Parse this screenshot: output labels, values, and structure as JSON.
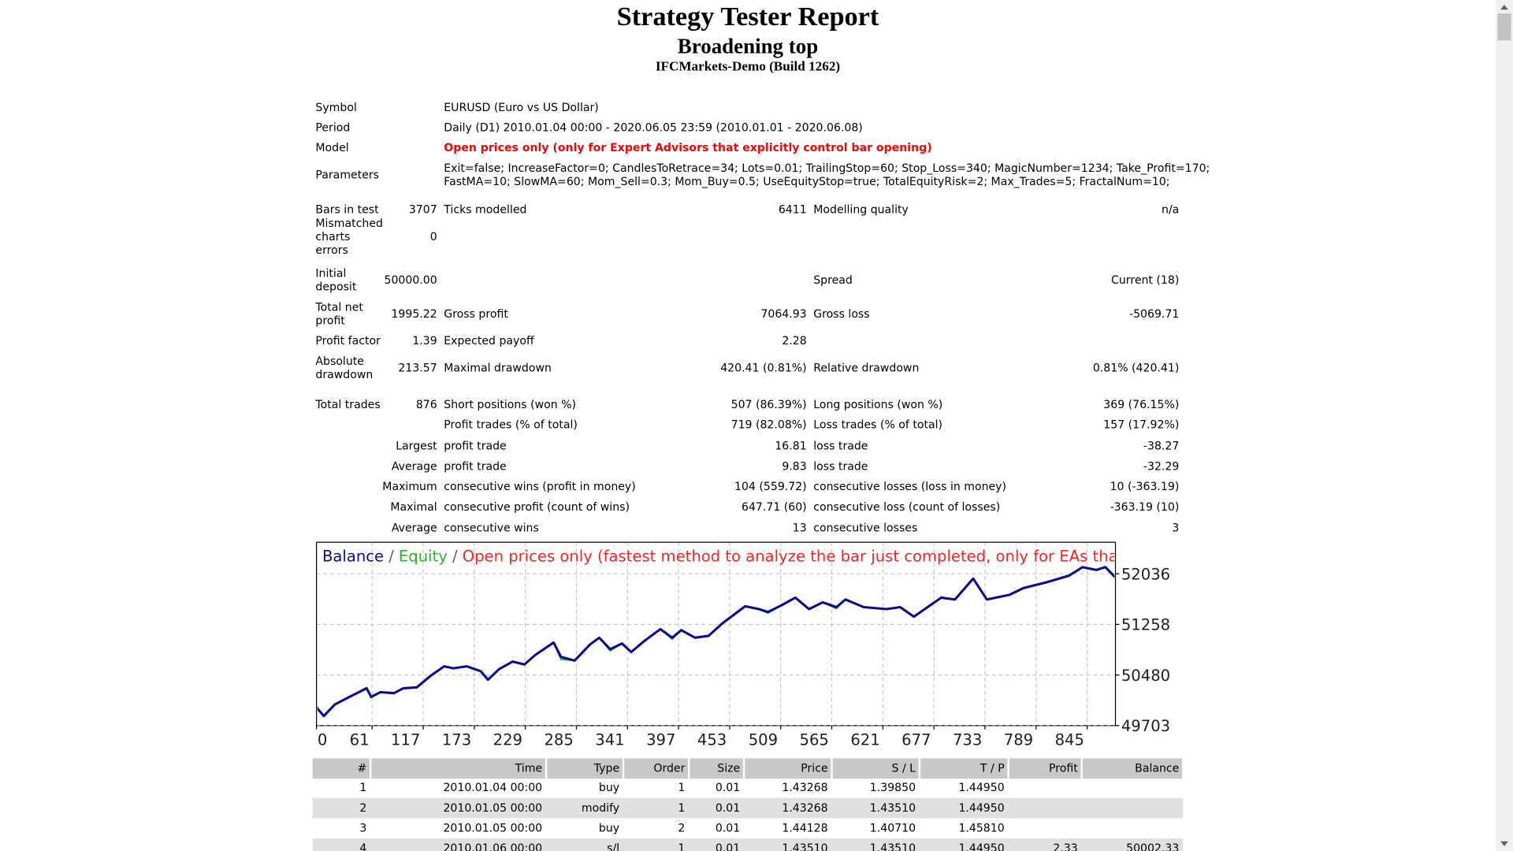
{
  "header": {
    "title": "Strategy Tester Report",
    "strategy": "Broadening top",
    "server": "IFCMarkets-Demo (Build 1262)"
  },
  "info": [
    {
      "label": "Symbol",
      "value": [
        "EURUSD (Euro vs US Dollar)"
      ]
    },
    {
      "label": "Period",
      "value": [
        "Daily (D1) 2010.01.04 00:00 - 2020.06.05 23:59 (2010.01.01 - 2020.06.08)"
      ]
    },
    {
      "label": "Model",
      "value": [
        "Open prices only (only for Expert Advisors that explicitly control bar opening)"
      ],
      "color": "#ff0000"
    },
    {
      "label": "Parameters",
      "value": [
        "Exit=false; IncreaseFactor=0; CandlesToRetrace=34; Lots=0.01; TrailingStop=60; Stop_Loss=340; MagicNumber=1234; Take_Profit=170;",
        "FastMA=10; SlowMA=60; Mom_Sell=0.3; Mom_Buy=0.5; UseEquityStop=true; TotalEquityRisk=2; Max_Trades=5; FractalNum=10;"
      ]
    }
  ],
  "stats": [
    [
      "Bars in test",
      "3707",
      "Ticks modelled",
      "6411",
      "Modelling quality",
      "n/a"
    ],
    [
      "Mismatched charts errors",
      "0",
      null,
      null,
      null,
      null
    ],
    [
      "Initial deposit",
      "50000.00",
      null,
      null,
      "Spread",
      "Current (18)"
    ],
    [
      "Total net profit",
      "1995.22",
      "Gross profit",
      "7064.93",
      "Gross loss",
      "-5069.71"
    ],
    [
      "Profit factor",
      "1.39",
      "Expected payoff",
      "2.28",
      null,
      null
    ],
    [
      "Absolute drawdown",
      "213.57",
      "Maximal drawdown",
      "420.41 (0.81%)",
      "Relative drawdown",
      "0.81% (420.41)"
    ],
    [
      "Total trades",
      "876",
      "Short positions (won %)",
      "507 (86.39%)",
      "Long positions (won %)",
      "369 (76.15%)"
    ],
    [
      null,
      null,
      "Profit trades (% of total)",
      "719 (82.08%)",
      "Loss trades (% of total)",
      "157 (17.92%)"
    ],
    [
      null,
      "Largest",
      "profit trade",
      "16.81",
      "loss trade",
      "-38.27"
    ],
    [
      null,
      "Average",
      "profit trade",
      "9.83",
      "loss trade",
      "-32.29"
    ],
    [
      null,
      "Maximum",
      "consecutive wins (profit in money)",
      "104 (559.72)",
      "consecutive losses (loss in money)",
      "10 (-363.19)"
    ],
    [
      null,
      "Maximal",
      "consecutive profit (count of wins)",
      "647.71 (60)",
      "consecutive loss (count of losses)",
      "-363.19 (10)"
    ],
    [
      null,
      "Average",
      "consecutive wins",
      "13",
      "consecutive losses",
      "3"
    ]
  ],
  "chart_data": {
    "type": "line",
    "separator": "/",
    "model_note": "Open prices only (fastest method to analyze the bar just completed, only for EAs that explicitly control b",
    "model_note_color": "#ff2020",
    "grid": true,
    "x": [
      0,
      8,
      20,
      40,
      55,
      60,
      70,
      85,
      95,
      110,
      125,
      140,
      150,
      165,
      180,
      188,
      200,
      215,
      228,
      240,
      260,
      268,
      283,
      300,
      310,
      322,
      335,
      345,
      360,
      377,
      390,
      400,
      415,
      430,
      445,
      470,
      485,
      495,
      510,
      525,
      540,
      555,
      570,
      580,
      600,
      625,
      640,
      655,
      670,
      685,
      700,
      720,
      735,
      760,
      775,
      800,
      825,
      840,
      855,
      865,
      876
    ],
    "series": [
      {
        "name": "Equity",
        "color": "#22b822",
        "values": [
          49982,
          49850,
          50026,
          50172,
          50290,
          50143,
          50216,
          50201,
          50275,
          50290,
          50466,
          50613,
          50583,
          50613,
          50539,
          50407,
          50569,
          50686,
          50642,
          50789,
          50979,
          50720,
          50701,
          50950,
          51053,
          50850,
          50965,
          50833,
          51009,
          51185,
          51030,
          51170,
          51053,
          51082,
          51273,
          51537,
          51493,
          51430,
          51552,
          51669,
          51493,
          51596,
          51500,
          51640,
          51523,
          51493,
          51523,
          51376,
          51523,
          51669,
          51640,
          51962,
          51640,
          51713,
          51815,
          51903,
          52006,
          52138,
          52094,
          52138,
          51977
        ]
      },
      {
        "name": "Balance",
        "color": "#0a0a9a",
        "values": [
          49982,
          49850,
          50026,
          50172,
          50275,
          50143,
          50216,
          50201,
          50275,
          50290,
          50466,
          50613,
          50583,
          50613,
          50539,
          50407,
          50569,
          50686,
          50642,
          50789,
          50979,
          50759,
          50701,
          50950,
          51053,
          50877,
          50965,
          50833,
          51009,
          51185,
          51053,
          51170,
          51053,
          51082,
          51273,
          51537,
          51493,
          51449,
          51552,
          51669,
          51493,
          51596,
          51523,
          51640,
          51523,
          51493,
          51523,
          51376,
          51523,
          51669,
          51640,
          51962,
          51640,
          51713,
          51815,
          51903,
          52006,
          52138,
          52094,
          52138,
          51977
        ]
      }
    ],
    "xlim": [
      0,
      876
    ],
    "xticks": [
      0,
      61,
      117,
      173,
      229,
      285,
      341,
      397,
      453,
      509,
      565,
      621,
      677,
      733,
      789,
      845
    ],
    "ylim": [
      49703,
      52520
    ],
    "yticks": [
      49703,
      50480,
      51258,
      52036
    ]
  },
  "table": {
    "header": [
      "#",
      "Time",
      "Type",
      "Order",
      "Size",
      "Price",
      "S / L",
      "T / P",
      "Profit",
      "Balance"
    ],
    "rows": [
      [
        "1",
        "2010.01.04 00:00",
        "buy",
        "1",
        "0.01",
        "1.43268",
        "1.39850",
        "1.44950",
        null,
        null
      ],
      [
        "2",
        "2010.01.05 00:00",
        "modify",
        "1",
        "0.01",
        "1.43268",
        "1.43510",
        "1.44950",
        null,
        null
      ],
      [
        "3",
        "2010.01.05 00:00",
        "buy",
        "2",
        "0.01",
        "1.44128",
        "1.40710",
        "1.45810",
        null,
        null
      ],
      [
        "4",
        "2010.01.06 00:00",
        "s/l",
        "1",
        "0.01",
        "1.43510",
        "1.43510",
        "1.44950",
        "2.33",
        "50002.33"
      ]
    ]
  }
}
